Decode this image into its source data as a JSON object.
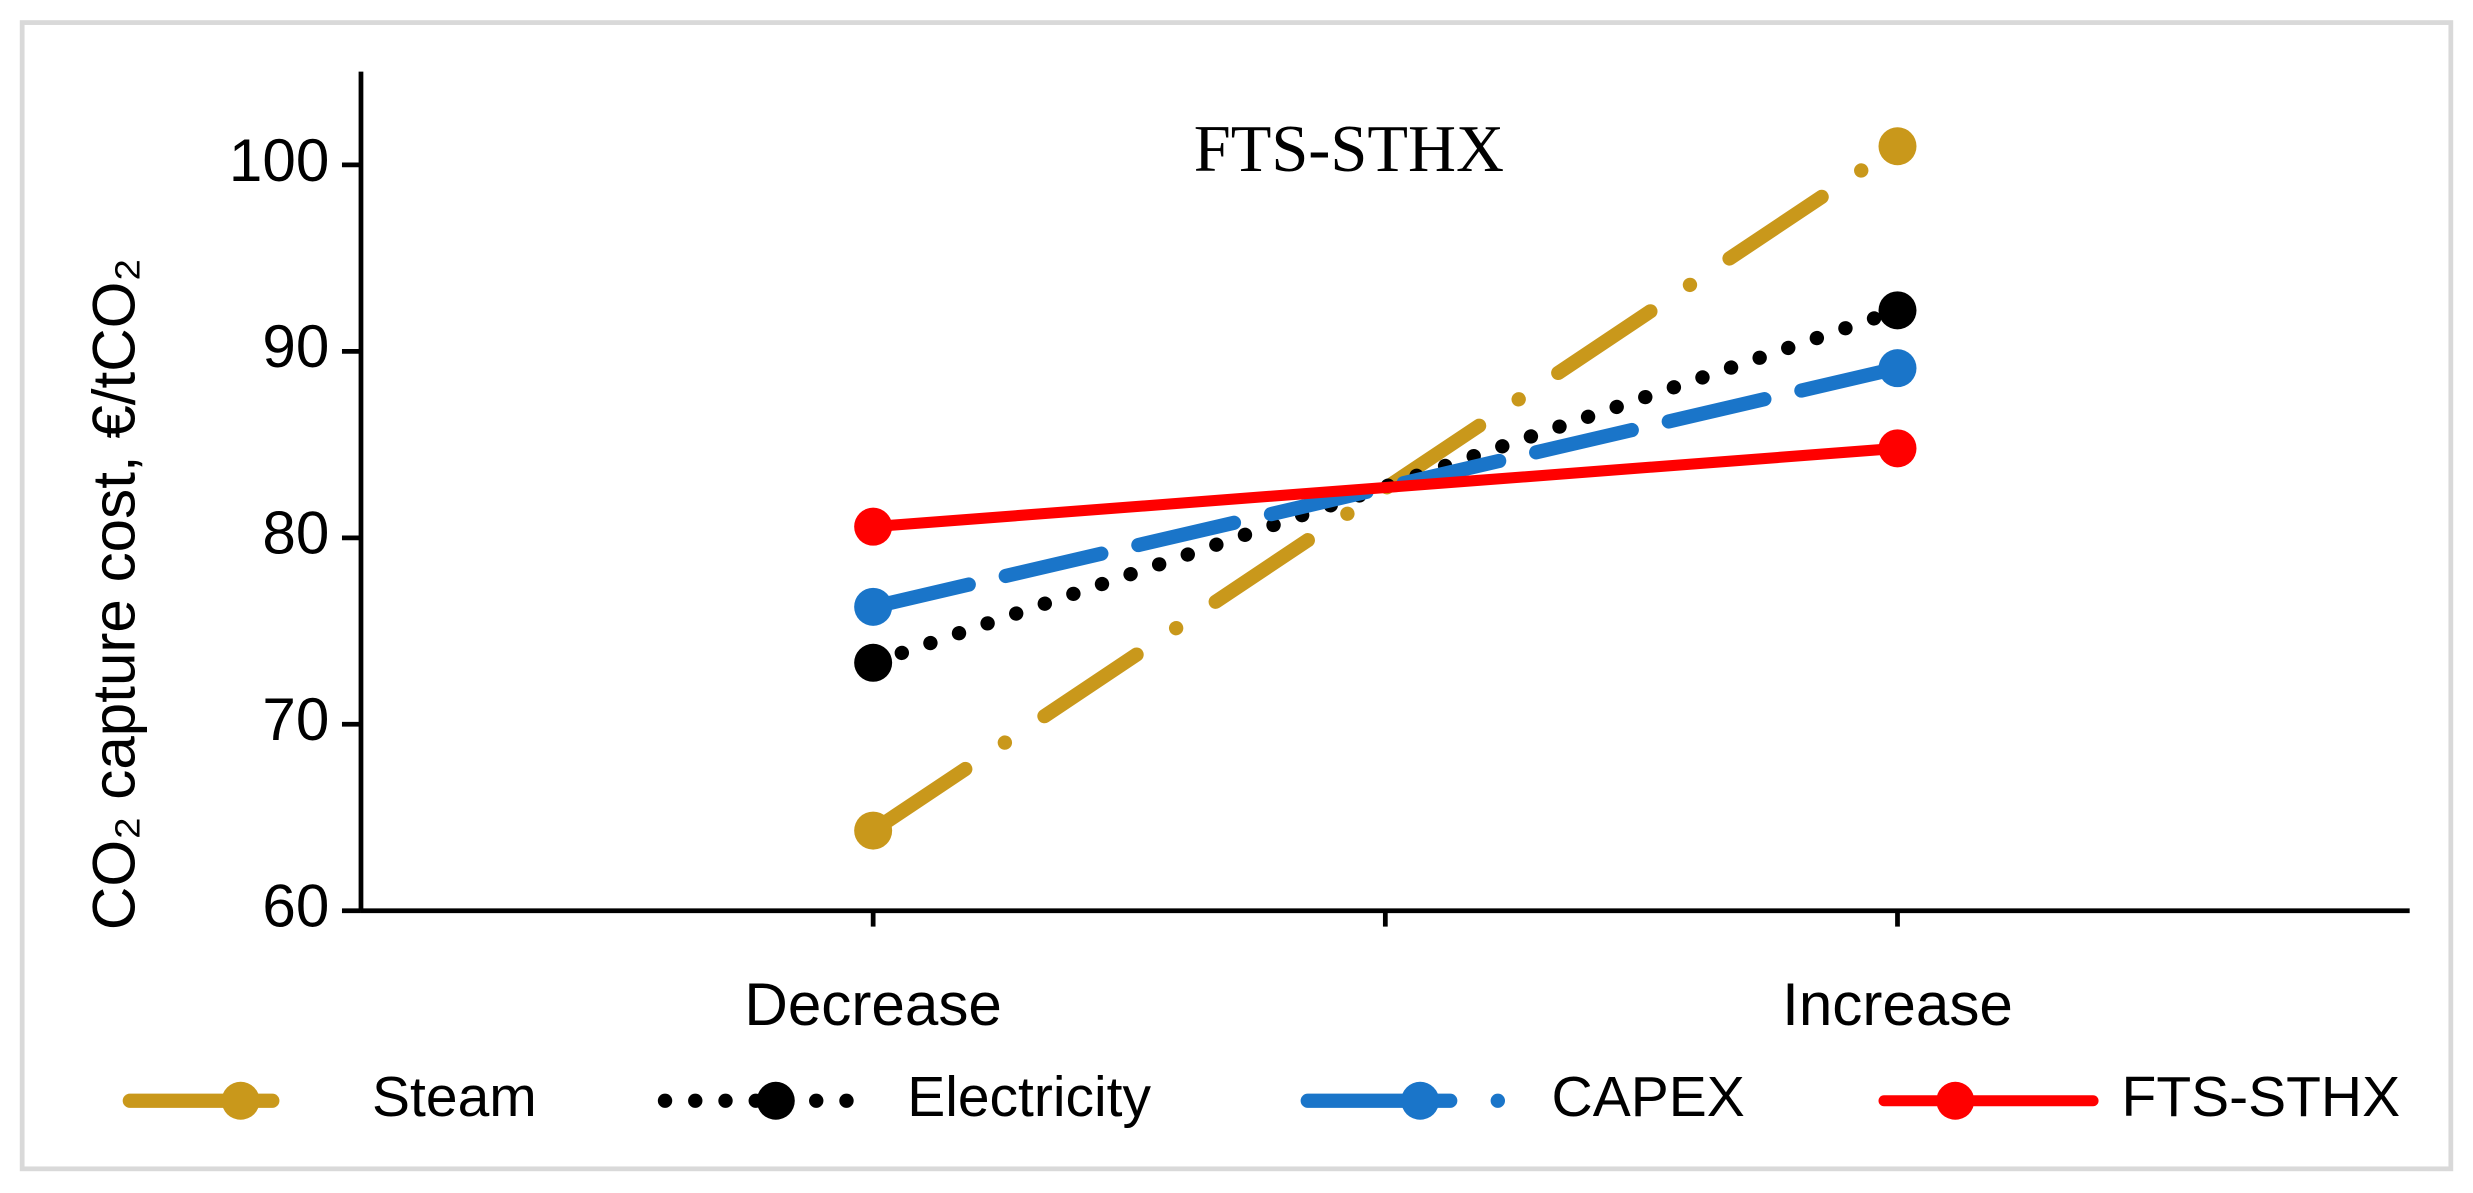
{
  "chart_data": {
    "type": "line",
    "title": "FTS-STHX",
    "y_label": "CO₂ capture cost, €/tCO₂",
    "categories": [
      "Decrease",
      "Increase"
    ],
    "series": [
      {
        "name": "Steam",
        "color": "#c9981b",
        "linestyle": "dashdot",
        "values": [
          64.3,
          101.0
        ]
      },
      {
        "name": "Electricity",
        "color": "#000000",
        "linestyle": "dotted",
        "values": [
          73.3,
          92.2
        ]
      },
      {
        "name": "CAPEX",
        "color": "#1a75c9",
        "linestyle": "dashed",
        "values": [
          76.3,
          89.1
        ]
      },
      {
        "name": "FTS-STHX",
        "color": "#ff0000",
        "linestyle": "solid",
        "values": [
          80.6,
          84.8
        ]
      }
    ],
    "ylim": [
      60,
      105
    ],
    "yticks": [
      60,
      70,
      80,
      90,
      100
    ],
    "legend": "bottom"
  }
}
